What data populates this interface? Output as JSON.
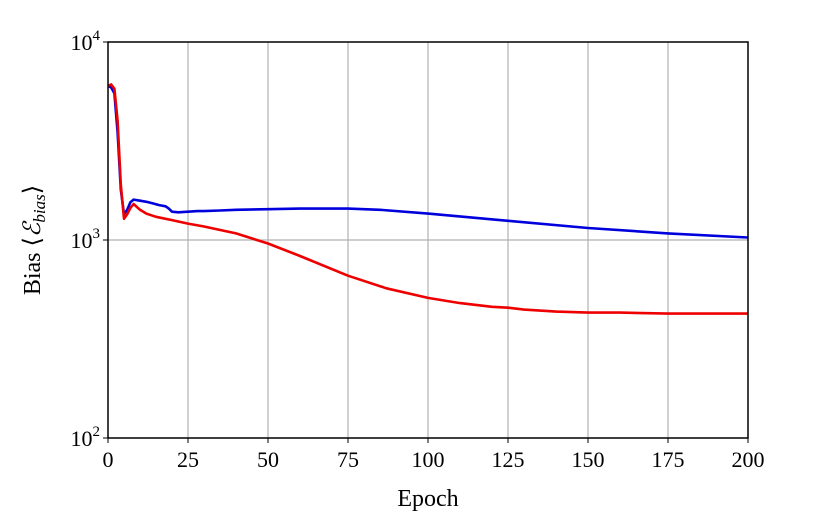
{
  "chart_data": {
    "type": "line",
    "title": "",
    "xlabel": "Epoch",
    "ylabel": "Bias ⟨ℰbias⟩",
    "ylabel_parts": {
      "prefix": "Bias ⟨",
      "symbol": "ℰ",
      "subscript": "bias",
      "suffix": "⟩"
    },
    "xlim": [
      0,
      200
    ],
    "ylim": [
      100,
      10000
    ],
    "yscale": "log",
    "grid": "vertical at x ticks, horizontal at 10^3",
    "xticks": [
      0,
      25,
      50,
      75,
      100,
      125,
      150,
      175,
      200
    ],
    "xtick_labels": [
      "0",
      "25",
      "50",
      "75",
      "100",
      "125",
      "150",
      "175",
      "200"
    ],
    "yticks": [
      {
        "value": 100,
        "base": "10",
        "exp": "2"
      },
      {
        "value": 1000,
        "base": "10",
        "exp": "3"
      },
      {
        "value": 10000,
        "base": "10",
        "exp": "4"
      }
    ],
    "series": [
      {
        "color": "#0000dd",
        "x": [
          0,
          1,
          2,
          3,
          4,
          5,
          6,
          7,
          8,
          10,
          12,
          14,
          16,
          18,
          19,
          20,
          22,
          25,
          28,
          30,
          35,
          40,
          50,
          60,
          75,
          85,
          100,
          125,
          150,
          175,
          200
        ],
        "y": [
          6000,
          5900,
          5500,
          3500,
          1800,
          1350,
          1420,
          1550,
          1600,
          1580,
          1560,
          1530,
          1500,
          1480,
          1440,
          1390,
          1380,
          1390,
          1400,
          1400,
          1410,
          1420,
          1430,
          1440,
          1440,
          1420,
          1360,
          1250,
          1150,
          1080,
          1030
        ]
      },
      {
        "color": "#ee0000",
        "x": [
          0,
          1,
          2,
          3,
          4,
          5,
          6,
          7,
          8,
          10,
          12,
          15,
          20,
          25,
          30,
          40,
          50,
          60,
          75,
          87,
          100,
          110,
          120,
          125,
          130,
          140,
          150,
          160,
          175,
          190,
          200
        ],
        "y": [
          6000,
          6100,
          5800,
          4000,
          1900,
          1280,
          1350,
          1450,
          1520,
          1420,
          1360,
          1310,
          1260,
          1210,
          1170,
          1080,
          960,
          830,
          660,
          570,
          510,
          480,
          460,
          455,
          445,
          435,
          430,
          430,
          425,
          425,
          425
        ]
      }
    ]
  }
}
